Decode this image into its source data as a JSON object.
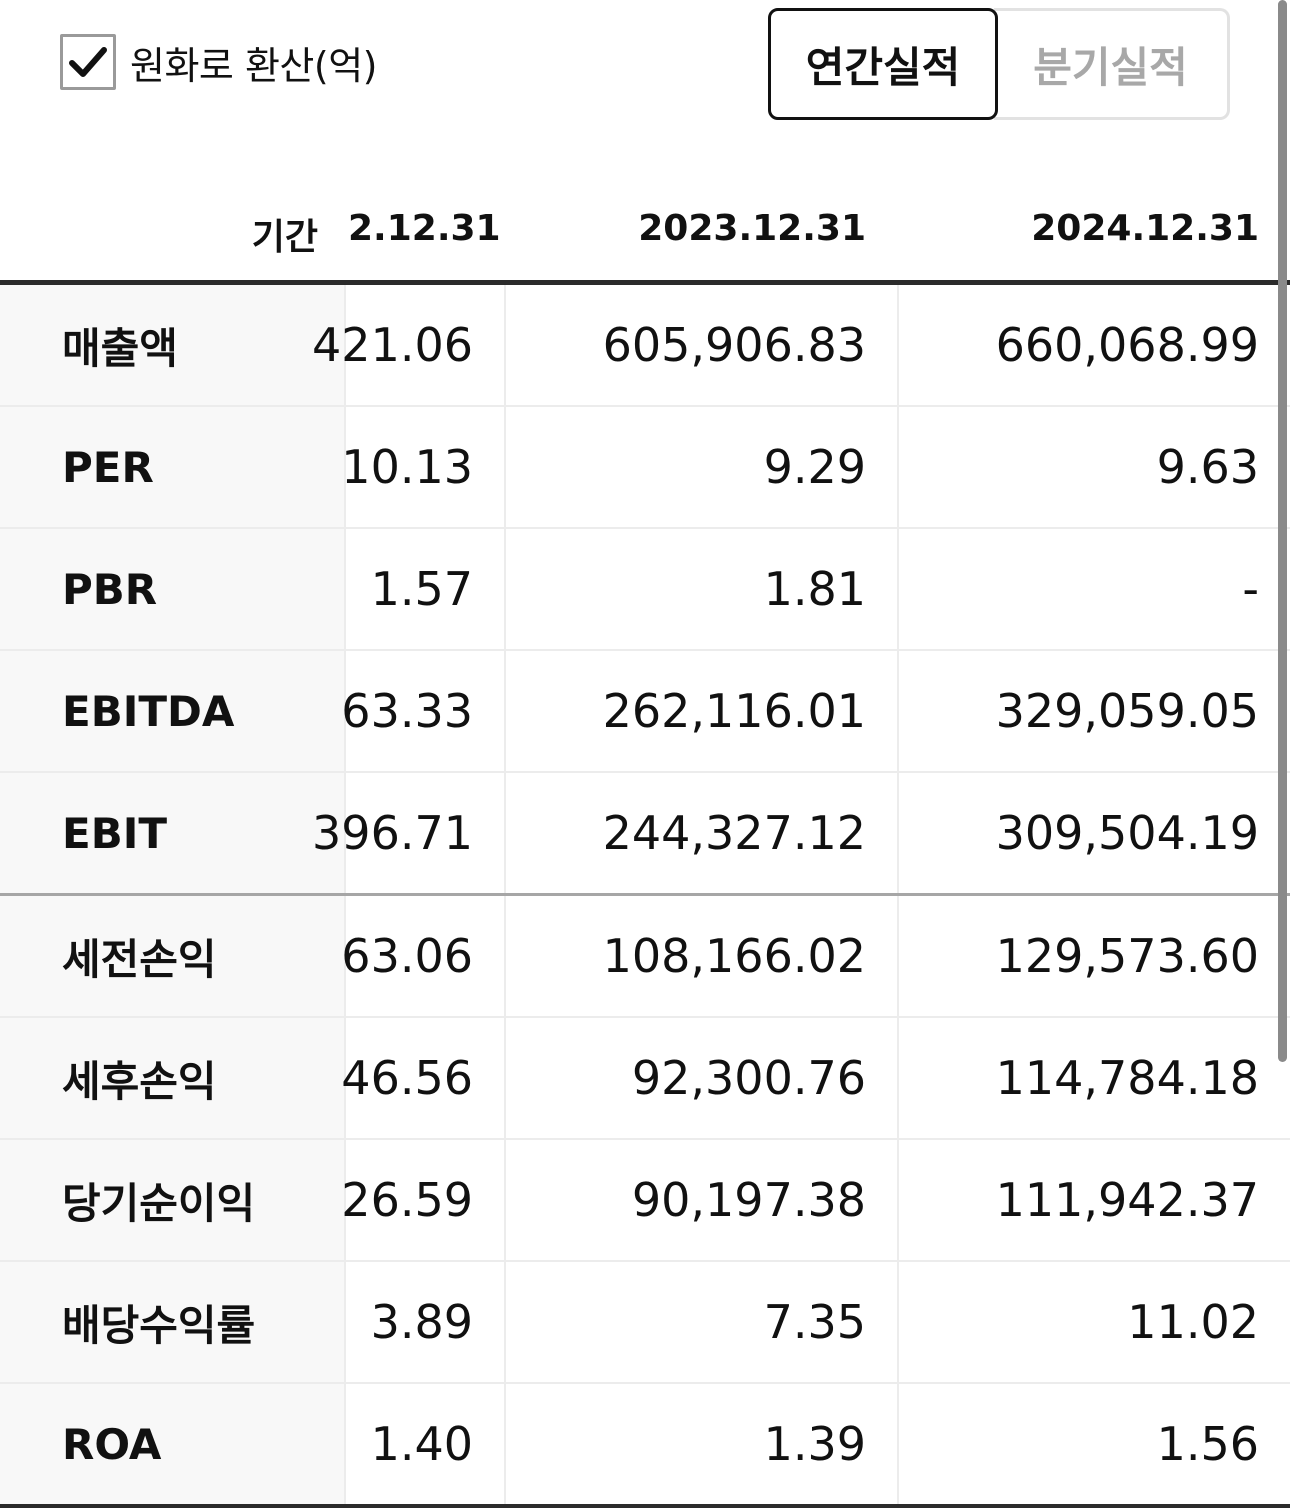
{
  "controls": {
    "convert_checkbox": {
      "label": "원화로 환산(억)",
      "checked": true
    },
    "tabs": [
      {
        "label": "연간실적",
        "active": true
      },
      {
        "label": "분기실적",
        "active": false
      }
    ]
  },
  "table": {
    "period_label": "기간",
    "columns": [
      "2.12.31",
      "2023.12.31",
      "2024.12.31"
    ],
    "rows": [
      {
        "label": "매출액",
        "values": [
          "421.06",
          "605,906.83",
          "660,068.99"
        ]
      },
      {
        "label": "PER",
        "values": [
          "10.13",
          "9.29",
          "9.63"
        ]
      },
      {
        "label": "PBR",
        "values": [
          "1.57",
          "1.81",
          "-"
        ]
      },
      {
        "label": "EBITDA",
        "values": [
          "63.33",
          "262,116.01",
          "329,059.05"
        ]
      },
      {
        "label": "EBIT",
        "values": [
          "396.71",
          "244,327.12",
          "309,504.19"
        ]
      },
      {
        "label": "세전손익",
        "values": [
          "63.06",
          "108,166.02",
          "129,573.60"
        ]
      },
      {
        "label": "세후손익",
        "values": [
          "46.56",
          "92,300.76",
          "114,784.18"
        ]
      },
      {
        "label": "당기순이익",
        "values": [
          "26.59",
          "90,197.38",
          "111,942.37"
        ]
      },
      {
        "label": "배당수익률",
        "values": [
          "3.89",
          "7.35",
          "11.02"
        ]
      },
      {
        "label": "ROA",
        "values": [
          "1.40",
          "1.39",
          "1.56"
        ]
      }
    ]
  }
}
